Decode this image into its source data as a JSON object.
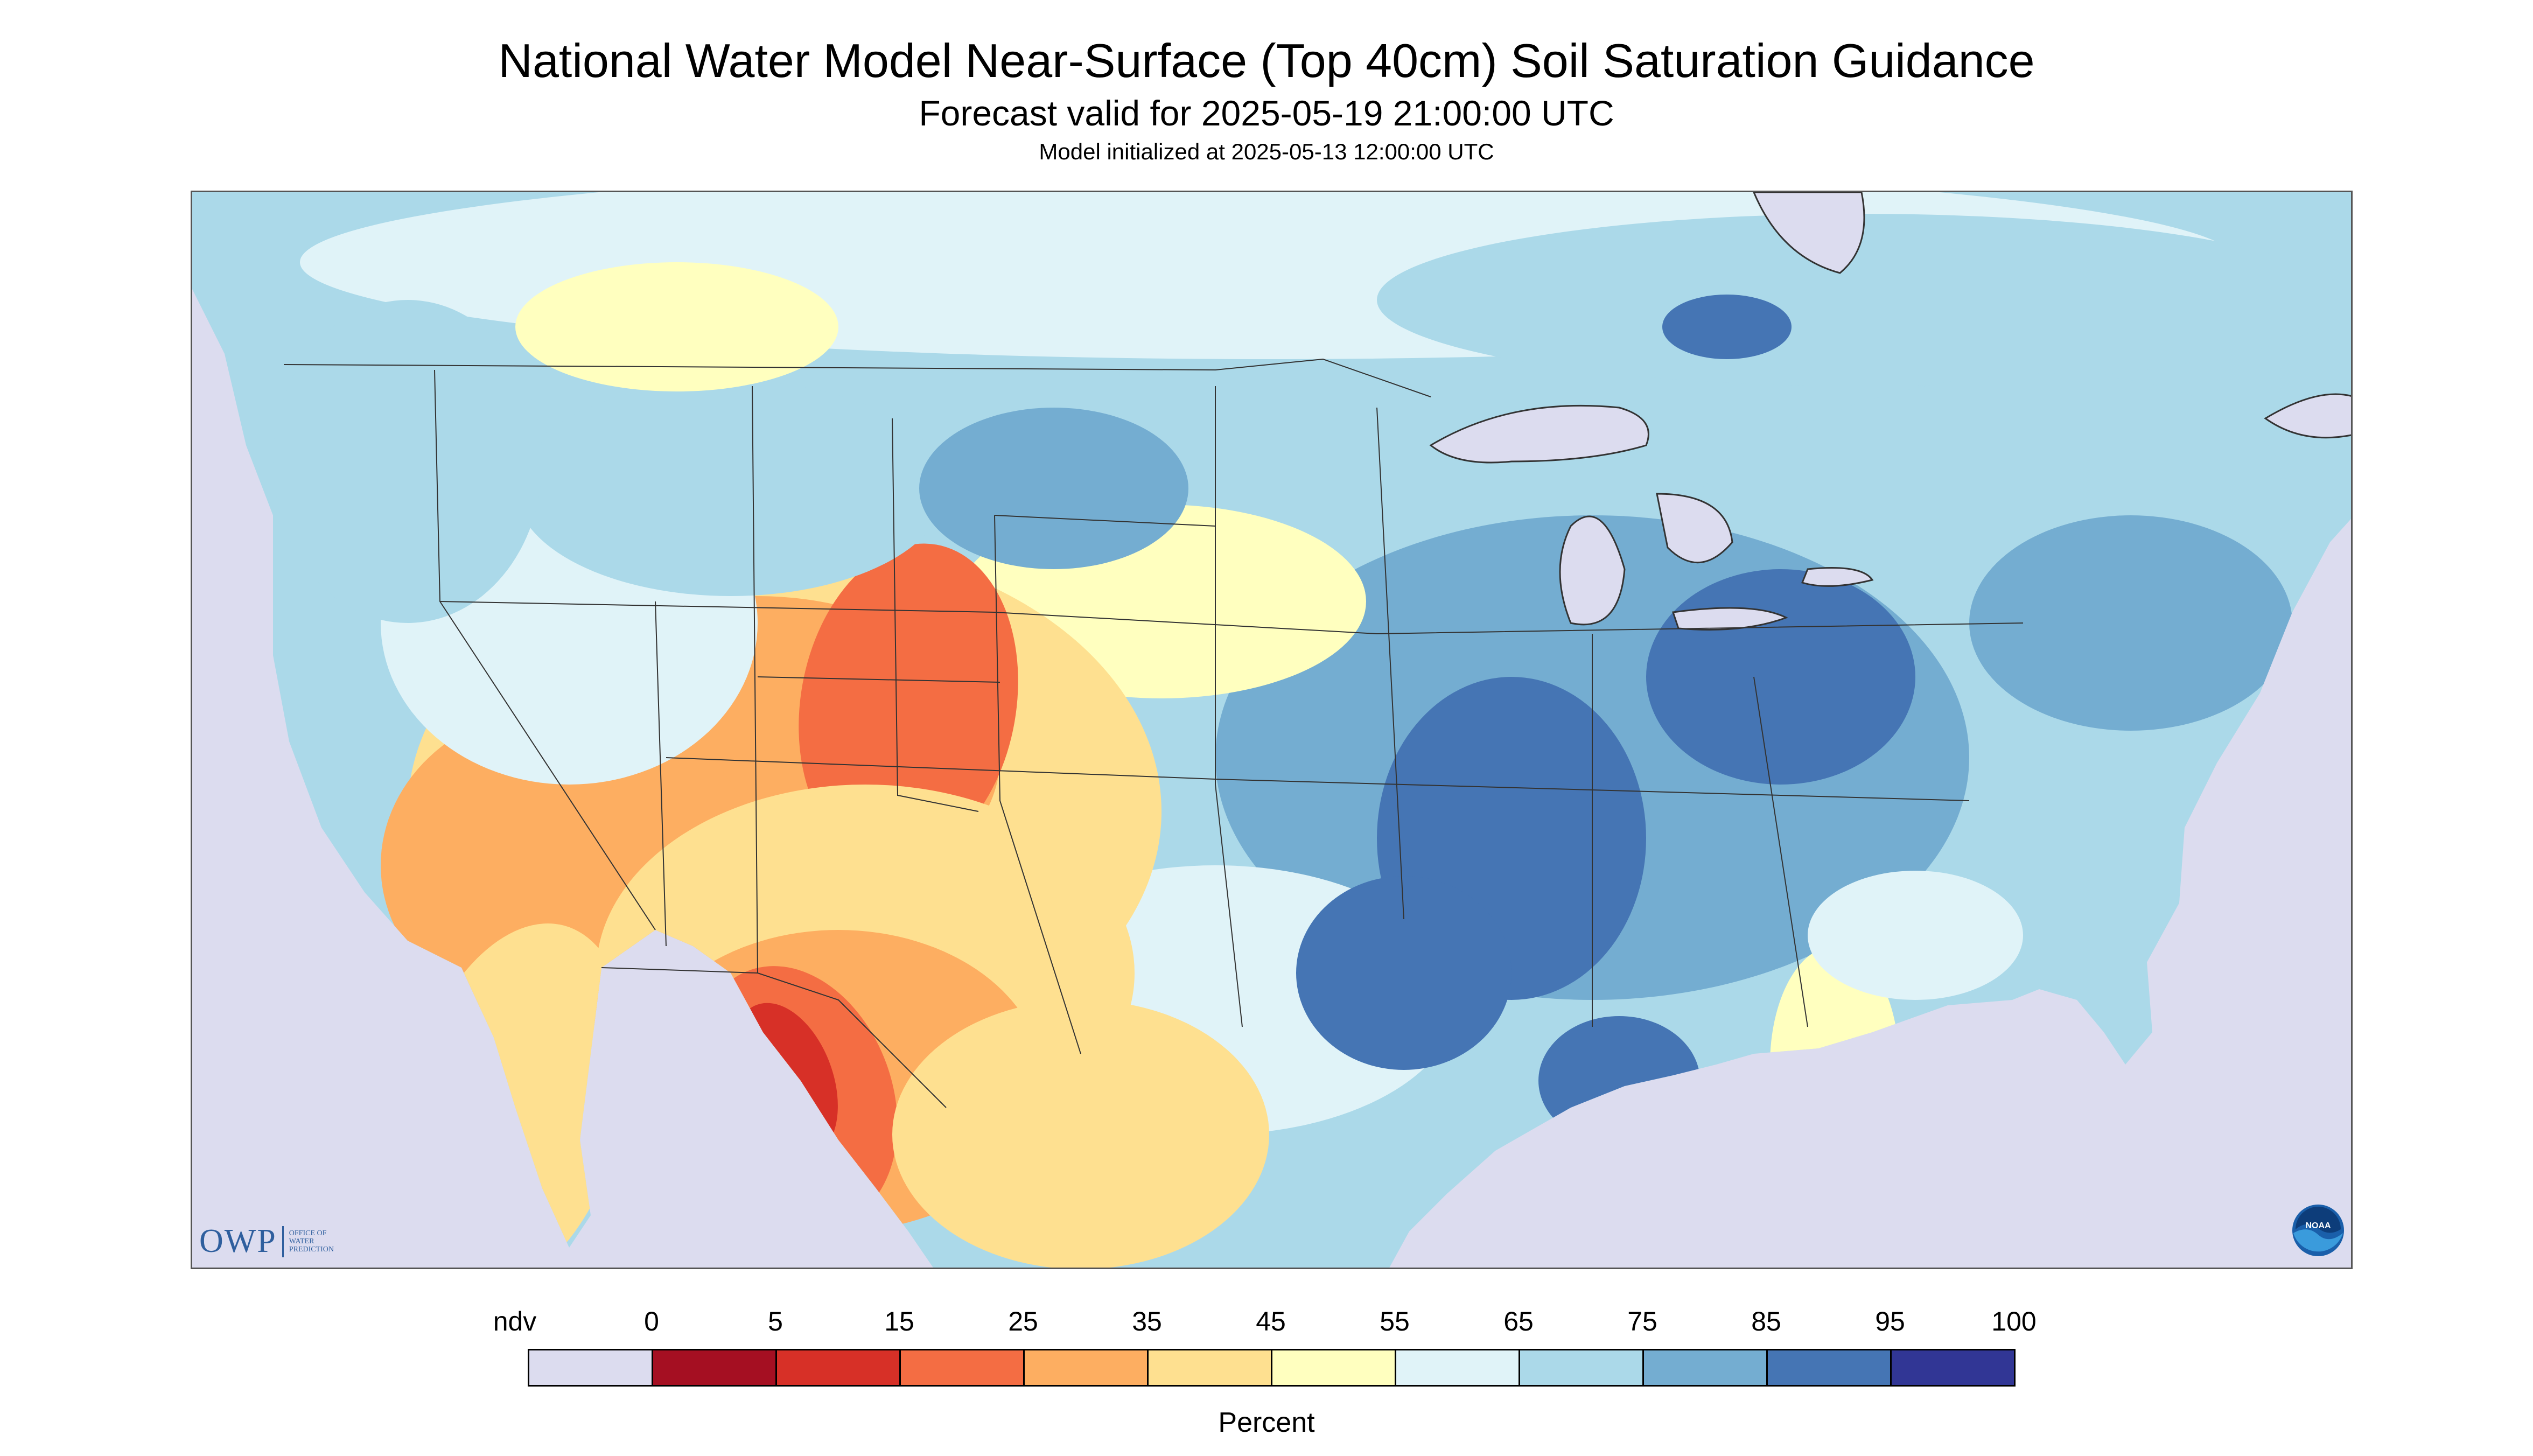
{
  "title": "National Water Model Near-Surface (Top 40cm) Soil Saturation Guidance",
  "subtitle": "Forecast valid for 2025-05-19 21:00:00 UTC",
  "init_line": "Model initialized at 2025-05-13 12:00:00 UTC",
  "logo": {
    "owp_text": "OWP",
    "owp_small": [
      "OFFICE OF",
      "WATER",
      "PREDICTION"
    ],
    "noaa_text": "NOAA"
  },
  "legend": {
    "unit": "Percent",
    "no_data_label": "ndv",
    "tick_labels": [
      "0",
      "5",
      "15",
      "25",
      "35",
      "45",
      "55",
      "65",
      "75",
      "85",
      "95",
      "100"
    ],
    "bins": [
      {
        "range": "ndv",
        "color": "#dcdcef"
      },
      {
        "range": "0-5",
        "color": "#a50f22"
      },
      {
        "range": "5-15",
        "color": "#d73027"
      },
      {
        "range": "15-25",
        "color": "#f46d43"
      },
      {
        "range": "25-35",
        "color": "#fdae61"
      },
      {
        "range": "35-45",
        "color": "#fee090"
      },
      {
        "range": "45-55",
        "color": "#ffffbf"
      },
      {
        "range": "55-65",
        "color": "#e0f3f8"
      },
      {
        "range": "65-75",
        "color": "#abd9e9"
      },
      {
        "range": "75-85",
        "color": "#74add1"
      },
      {
        "range": "85-95",
        "color": "#4575b4"
      },
      {
        "range": "95-100",
        "color": "#313695"
      }
    ]
  },
  "colors": {
    "no_data": "#dcdcef",
    "boundary": "#333333"
  }
}
